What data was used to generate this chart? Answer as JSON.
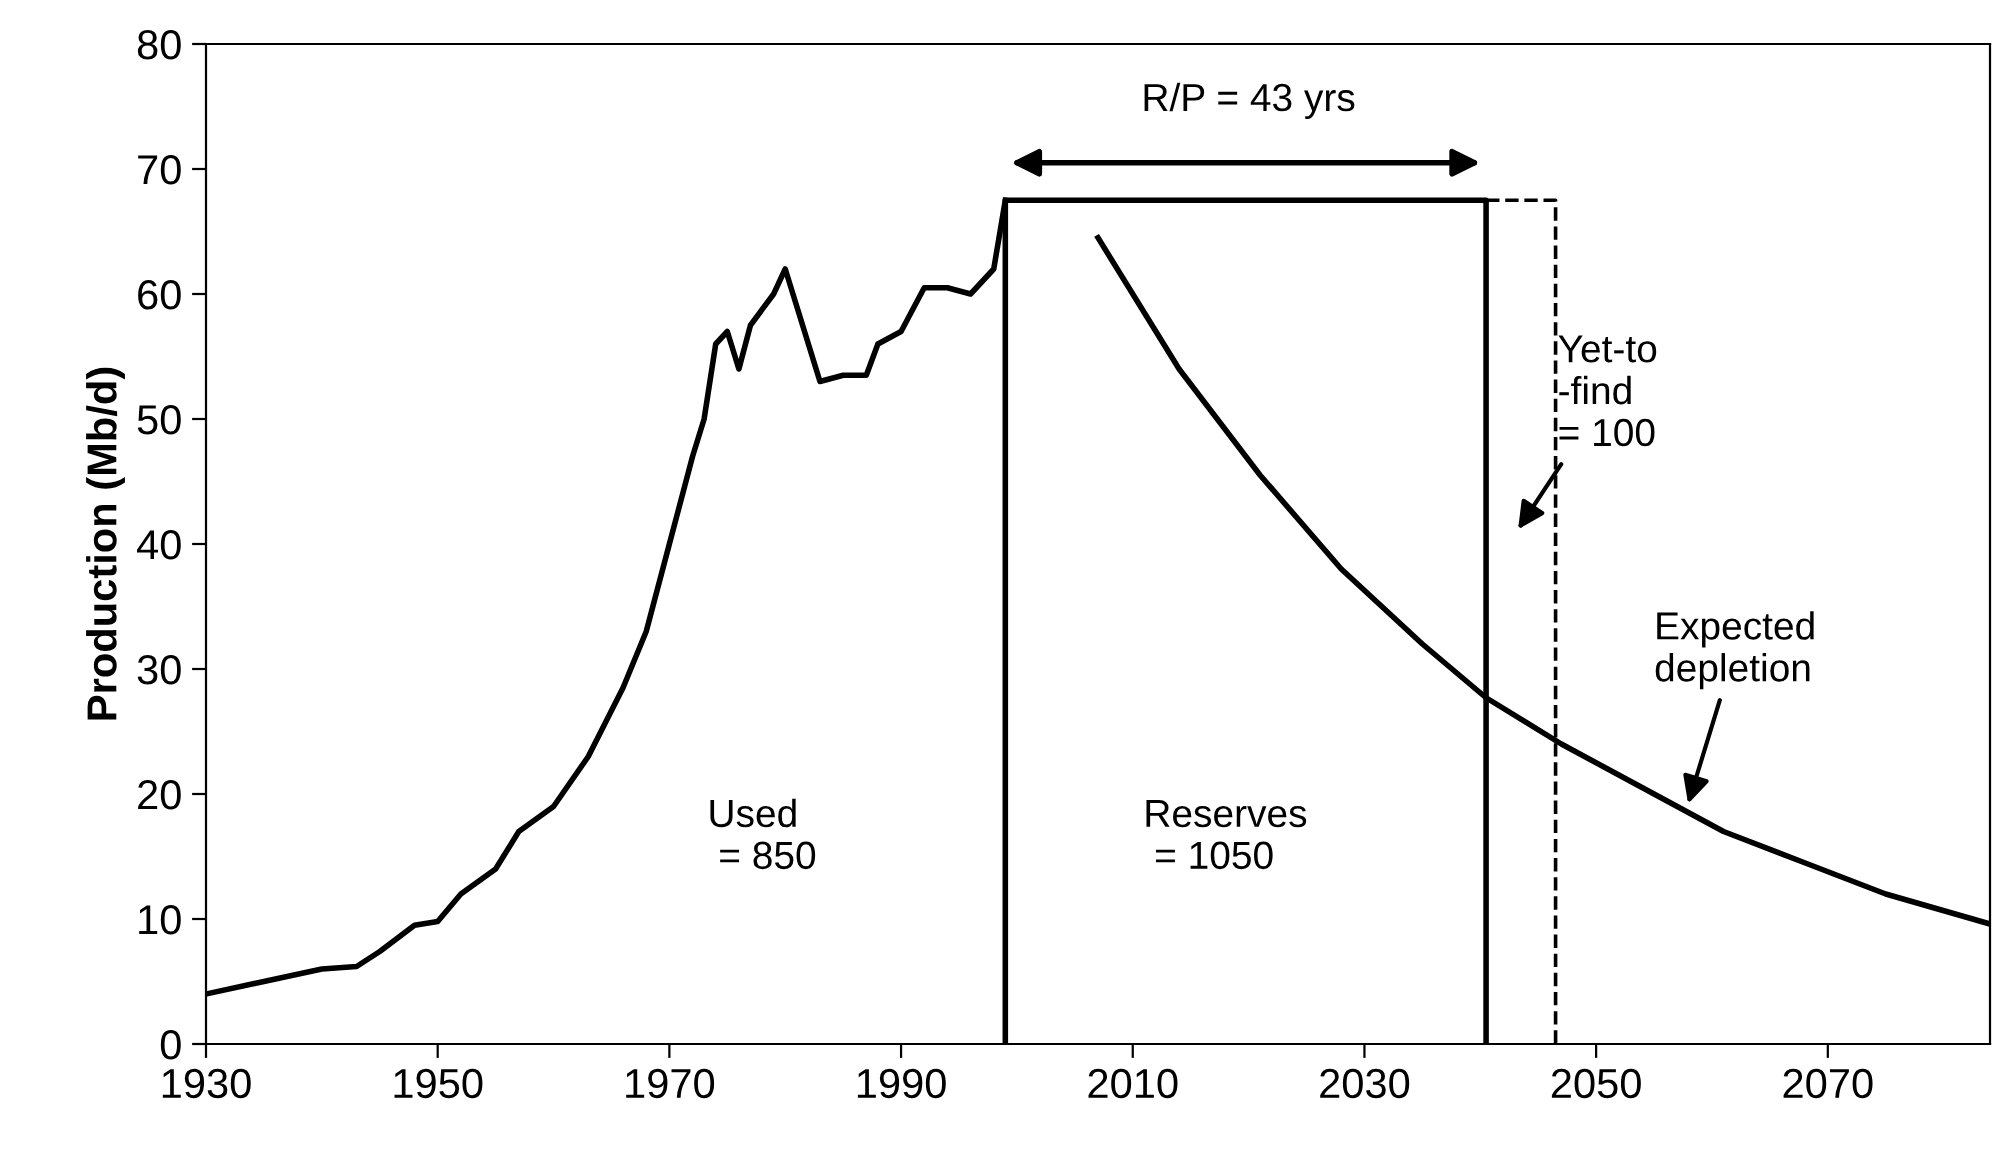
{
  "chart_data": {
    "type": "line",
    "ylabel": "Production (Mb/d)",
    "xlim": [
      1930,
      2084
    ],
    "xticks": [
      1930,
      1950,
      1970,
      1990,
      2010,
      2030,
      2050,
      2070
    ],
    "ylim": [
      0,
      80
    ],
    "yticks": [
      0,
      10,
      20,
      30,
      40,
      50,
      60,
      70,
      80
    ],
    "grid": false,
    "legend": false,
    "series": [
      {
        "color": "#000000",
        "line_style": "solid",
        "x": [
          1930,
          1940,
          1943,
          1945,
          1948,
          1950,
          1952,
          1955,
          1957,
          1960,
          1963,
          1966,
          1968,
          1970,
          1972,
          1973,
          1974,
          1975,
          1976,
          1977,
          1979,
          1980,
          1981,
          1983,
          1985,
          1987,
          1988,
          1990,
          1992,
          1994,
          1996,
          1998,
          1999
        ],
        "values": [
          4,
          6,
          6.2,
          7.4,
          9.5,
          9.8,
          12,
          14,
          17,
          19,
          23,
          28.5,
          33,
          40,
          47,
          50,
          56,
          57,
          54,
          57.5,
          60,
          62,
          59,
          53,
          53.5,
          53.5,
          56,
          57,
          60.5,
          60.5,
          60,
          62,
          67.5
        ]
      },
      {
        "color": "#000000",
        "line_style": "solid",
        "x": [
          1999,
          1999,
          2040.5,
          2040.5
        ],
        "values": [
          0,
          67.5,
          67.5,
          0
        ]
      },
      {
        "color": "#000000",
        "line_style": "dashed",
        "x": [
          2040.5,
          2046.5,
          2046.5
        ],
        "values": [
          67.5,
          67.5,
          0
        ]
      },
      {
        "color": "#000000",
        "line_style": "solid",
        "x": [
          2007,
          2014,
          2021,
          2028,
          2035,
          2040.5,
          2047,
          2054,
          2061,
          2068,
          2075,
          2084
        ],
        "values": [
          64.5,
          54,
          45.5,
          38,
          32,
          27.7,
          24,
          20.5,
          17,
          14.5,
          12,
          9.6
        ]
      }
    ],
    "annotations": [
      "R/P = 43 yrs",
      "Yet-to\n-find\n= 100",
      "Expected\ndepletion",
      "Used\n = 850",
      "Reserves\n = 1050"
    ]
  }
}
